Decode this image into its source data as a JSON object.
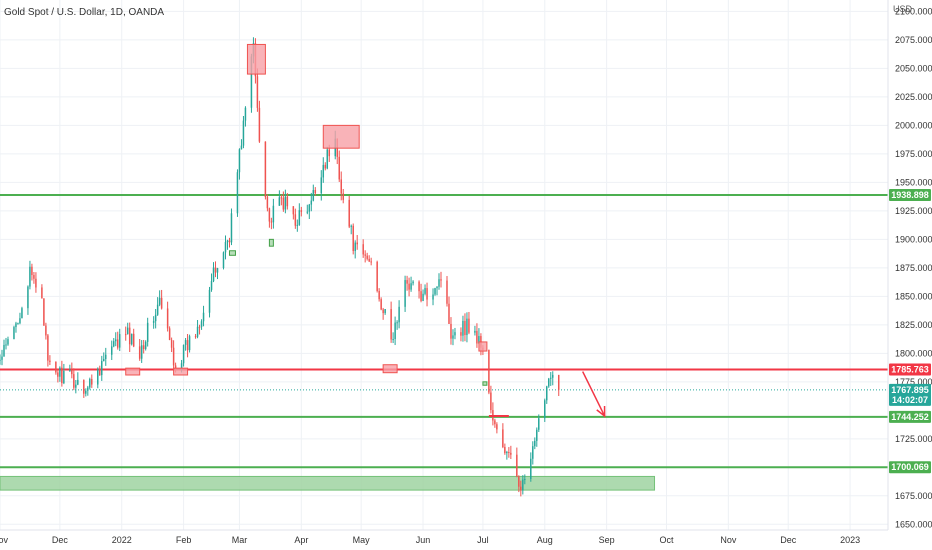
{
  "header": {
    "symbol_title": "Gold Spot / U.S. Dollar, 1D, OANDA"
  },
  "colors": {
    "up": "#26a69a",
    "down": "#ef5350",
    "support": "#4caf50",
    "resistance": "#f23645",
    "zone_red": "#f7a0a6",
    "zone_green": "#a5d6a7",
    "grid": "#eef1f5",
    "price_badge": "#26a69a"
  },
  "chart_data": {
    "type": "candlestick",
    "title": "Gold Spot / U.S. Dollar, 1D, OANDA",
    "y_unit": "USD",
    "y_range": [
      1645,
      2110
    ],
    "x_range": [
      "2021-11-01",
      "2023-01-20"
    ],
    "y_ticks": [
      {
        "value": 2100,
        "label": "2100.000"
      },
      {
        "value": 2075,
        "label": "2075.000"
      },
      {
        "value": 2050,
        "label": "2050.000"
      },
      {
        "value": 2025,
        "label": "2025.000"
      },
      {
        "value": 2000,
        "label": "2000.000"
      },
      {
        "value": 1975,
        "label": "1975.000"
      },
      {
        "value": 1950,
        "label": "1950.000"
      },
      {
        "value": 1925,
        "label": "1925.000"
      },
      {
        "value": 1900,
        "label": "1900.000"
      },
      {
        "value": 1875,
        "label": "1875.000"
      },
      {
        "value": 1850,
        "label": "1850.000"
      },
      {
        "value": 1825,
        "label": "1825.000"
      },
      {
        "value": 1800,
        "label": "1800.000"
      },
      {
        "value": 1775,
        "label": "1775.000"
      },
      {
        "value": 1725,
        "label": "1725.000"
      },
      {
        "value": 1675,
        "label": "1675.000"
      },
      {
        "value": 1650,
        "label": "1650.000"
      }
    ],
    "x_ticks": [
      {
        "date": "2021-11-01",
        "label": "Nov"
      },
      {
        "date": "2021-12-01",
        "label": "Dec"
      },
      {
        "date": "2022-01-01",
        "label": "2022"
      },
      {
        "date": "2022-02-01",
        "label": "Feb"
      },
      {
        "date": "2022-03-01",
        "label": "Mar"
      },
      {
        "date": "2022-04-01",
        "label": "Apr"
      },
      {
        "date": "2022-05-01",
        "label": "May"
      },
      {
        "date": "2022-06-01",
        "label": "Jun"
      },
      {
        "date": "2022-07-01",
        "label": "Jul"
      },
      {
        "date": "2022-08-01",
        "label": "Aug"
      },
      {
        "date": "2022-09-01",
        "label": "Sep"
      },
      {
        "date": "2022-10-01",
        "label": "Oct"
      },
      {
        "date": "2022-11-01",
        "label": "Nov"
      },
      {
        "date": "2022-12-01",
        "label": "Dec"
      },
      {
        "date": "2023-01-01",
        "label": "2023"
      }
    ],
    "price_line": 1767.895,
    "badges": [
      {
        "value": 1938.898,
        "label": "1938.898",
        "color": "#4caf50"
      },
      {
        "value": 1785.763,
        "label": "1785.763",
        "color": "#f23645"
      },
      {
        "value": 1767.895,
        "label": "1767.895",
        "color": "#26a69a",
        "sub": "14:02:07"
      },
      {
        "value": 1744.252,
        "label": "1744.252",
        "color": "#4caf50"
      },
      {
        "value": 1700.069,
        "label": "1700.069",
        "color": "#4caf50"
      }
    ],
    "horizontal_lines": [
      {
        "value": 1938.898,
        "color": "#4caf50"
      },
      {
        "value": 1785.763,
        "color": "#f23645"
      },
      {
        "value": 1744.252,
        "color": "#4caf50"
      },
      {
        "value": 1700.069,
        "color": "#4caf50"
      }
    ],
    "zones": [
      {
        "x1": "2021-11-01",
        "x2": "2022-09-25",
        "y_low": 1680,
        "y_high": 1692,
        "color": "#a5d6a7"
      }
    ],
    "markers": [
      {
        "x1": "2022-03-05",
        "x2": "2022-03-14",
        "y_low": 2045,
        "y_high": 2071,
        "color": "#f7a0a6"
      },
      {
        "x1": "2022-04-12",
        "x2": "2022-04-30",
        "y_low": 1980,
        "y_high": 2000,
        "color": "#f7a0a6"
      },
      {
        "x1": "2022-01-03",
        "x2": "2022-01-10",
        "y_low": 1781,
        "y_high": 1787,
        "color": "#f7a0a6"
      },
      {
        "x1": "2022-01-27",
        "x2": "2022-02-03",
        "y_low": 1781,
        "y_high": 1787,
        "color": "#f7a0a6"
      },
      {
        "x1": "2022-05-12",
        "x2": "2022-05-19",
        "y_low": 1783,
        "y_high": 1790,
        "color": "#f7a0a6"
      },
      {
        "x1": "2022-06-29",
        "x2": "2022-07-03",
        "y_low": 1802,
        "y_high": 1810,
        "color": "#f7a0a6"
      },
      {
        "x1": "2022-02-24",
        "x2": "2022-02-27",
        "y_low": 1886,
        "y_high": 1890,
        "color": "#a5d6a7"
      },
      {
        "x1": "2022-03-16",
        "x2": "2022-03-18",
        "y_low": 1894,
        "y_high": 1900,
        "color": "#a5d6a7"
      },
      {
        "x1": "2022-07-01",
        "x2": "2022-07-03",
        "y_low": 1772,
        "y_high": 1775,
        "color": "#a5d6a7"
      }
    ],
    "segments": [
      {
        "x1": "2022-07-04",
        "x2": "2022-07-14",
        "y1": 1745,
        "y2": 1745,
        "color": "#f23645"
      }
    ],
    "projection_arrow": {
      "x1": "2022-08-20",
      "y1": 1784,
      "x2": "2022-08-31",
      "y2": 1745,
      "color": "#f23645"
    },
    "waypoints": [
      [
        "2021-11-01",
        1793
      ],
      [
        "2021-11-08",
        1820
      ],
      [
        "2021-11-16",
        1868
      ],
      [
        "2021-11-22",
        1852
      ],
      [
        "2021-11-25",
        1788
      ],
      [
        "2021-12-01",
        1782
      ],
      [
        "2021-12-15",
        1770
      ],
      [
        "2021-12-22",
        1792
      ],
      [
        "2022-01-03",
        1818
      ],
      [
        "2022-01-10",
        1803
      ],
      [
        "2022-01-20",
        1845
      ],
      [
        "2022-01-28",
        1789
      ],
      [
        "2022-02-07",
        1819
      ],
      [
        "2022-02-14",
        1858
      ],
      [
        "2022-02-24",
        1905
      ],
      [
        "2022-03-08",
        2070
      ],
      [
        "2022-03-11",
        1990
      ],
      [
        "2022-03-16",
        1915
      ],
      [
        "2022-03-22",
        1935
      ],
      [
        "2022-03-29",
        1918
      ],
      [
        "2022-04-05",
        1926
      ],
      [
        "2022-04-12",
        1966
      ],
      [
        "2022-04-18",
        1985
      ],
      [
        "2022-04-22",
        1934
      ],
      [
        "2022-04-28",
        1890
      ],
      [
        "2022-05-06",
        1880
      ],
      [
        "2022-05-16",
        1810
      ],
      [
        "2022-05-24",
        1865
      ],
      [
        "2022-06-01",
        1848
      ],
      [
        "2022-06-10",
        1868
      ],
      [
        "2022-06-15",
        1820
      ],
      [
        "2022-06-24",
        1825
      ],
      [
        "2022-07-01",
        1805
      ],
      [
        "2022-07-06",
        1738
      ],
      [
        "2022-07-14",
        1708
      ],
      [
        "2022-07-21",
        1683
      ],
      [
        "2022-07-27",
        1718
      ],
      [
        "2022-08-01",
        1766
      ],
      [
        "2022-08-04",
        1786
      ],
      [
        "2022-08-08",
        1768
      ]
    ]
  }
}
